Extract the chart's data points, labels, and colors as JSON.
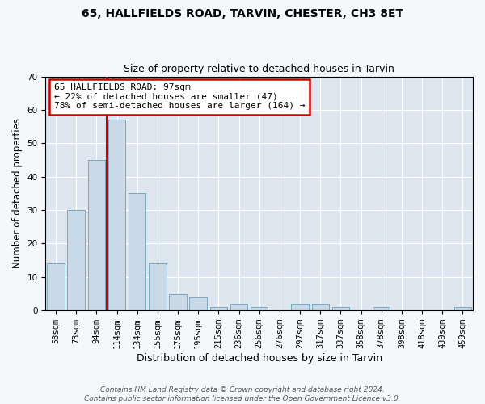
{
  "title1": "65, HALLFIELDS ROAD, TARVIN, CHESTER, CH3 8ET",
  "title2": "Size of property relative to detached houses in Tarvin",
  "xlabel": "Distribution of detached houses by size in Tarvin",
  "ylabel": "Number of detached properties",
  "categories": [
    "53sqm",
    "73sqm",
    "94sqm",
    "114sqm",
    "134sqm",
    "155sqm",
    "175sqm",
    "195sqm",
    "215sqm",
    "236sqm",
    "256sqm",
    "276sqm",
    "297sqm",
    "317sqm",
    "337sqm",
    "358sqm",
    "378sqm",
    "398sqm",
    "418sqm",
    "439sqm",
    "459sqm"
  ],
  "values": [
    14,
    30,
    45,
    57,
    35,
    14,
    5,
    4,
    1,
    2,
    1,
    0,
    2,
    2,
    1,
    0,
    1,
    0,
    0,
    0,
    1
  ],
  "bar_color": "#c9d9e8",
  "bar_edge_color": "#7aaabf",
  "vline_color": "#cc0000",
  "annotation_text": "65 HALLFIELDS ROAD: 97sqm\n← 22% of detached houses are smaller (47)\n78% of semi-detached houses are larger (164) →",
  "annotation_box_color": "#ffffff",
  "annotation_box_edge": "#cc0000",
  "ylim": [
    0,
    70
  ],
  "yticks": [
    0,
    10,
    20,
    30,
    40,
    50,
    60,
    70
  ],
  "background_color": "#dde6ef",
  "fig_background_color": "#f5f8fb",
  "footer": "Contains HM Land Registry data © Crown copyright and database right 2024.\nContains public sector information licensed under the Open Government Licence v3.0.",
  "title1_fontsize": 10,
  "title2_fontsize": 9,
  "xlabel_fontsize": 9,
  "ylabel_fontsize": 8.5,
  "tick_fontsize": 7.5,
  "annotation_fontsize": 8,
  "footer_fontsize": 6.5
}
